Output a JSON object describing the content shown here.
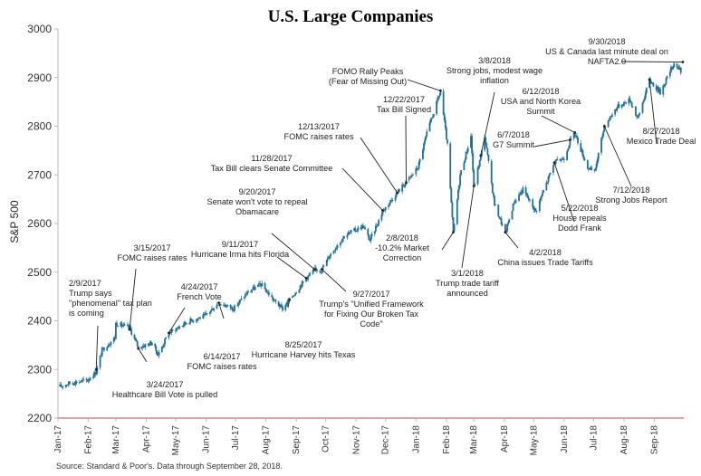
{
  "chart_data": {
    "type": "candlestick",
    "title": "U.S. Large Companies",
    "ylabel": "S&P 500",
    "ylim": [
      2200,
      3000
    ],
    "yticks": [
      "3000",
      "2900",
      "2800",
      "2700",
      "2600",
      "2500",
      "2400",
      "2300",
      "2200"
    ],
    "grid": false,
    "x_ticks": [
      "Jan-17",
      "Feb-17",
      "Mar-17",
      "Apr-17",
      "May-17",
      "Jun-17",
      "Jul-17",
      "Aug-17",
      "Sep-17",
      "Oct-17",
      "Nov-17",
      "Dec-17",
      "Jan-18",
      "Feb-18",
      "Mar-18",
      "Apr-18",
      "May-18",
      "Jun-18",
      "Jul-18",
      "Aug-18",
      "Sep-18"
    ],
    "series": [
      {
        "points": [
          [
            "2017-01-03",
            2265
          ],
          [
            "2017-01-13",
            2272
          ],
          [
            "2017-01-31",
            2278
          ],
          [
            "2017-02-09",
            2295
          ],
          [
            "2017-02-15",
            2340
          ],
          [
            "2017-02-28",
            2365
          ],
          [
            "2017-03-01",
            2395
          ],
          [
            "2017-03-15",
            2385
          ],
          [
            "2017-03-24",
            2345
          ],
          [
            "2017-04-07",
            2355
          ],
          [
            "2017-04-13",
            2330
          ],
          [
            "2017-04-24",
            2375
          ],
          [
            "2017-05-15",
            2400
          ],
          [
            "2017-05-31",
            2410
          ],
          [
            "2017-06-14",
            2437
          ],
          [
            "2017-06-29",
            2425
          ],
          [
            "2017-07-14",
            2460
          ],
          [
            "2017-07-27",
            2475
          ],
          [
            "2017-08-10",
            2440
          ],
          [
            "2017-08-18",
            2425
          ],
          [
            "2017-08-25",
            2443
          ],
          [
            "2017-09-11",
            2488
          ],
          [
            "2017-09-20",
            2505
          ],
          [
            "2017-09-27",
            2505
          ],
          [
            "2017-10-05",
            2535
          ],
          [
            "2017-10-20",
            2575
          ],
          [
            "2017-11-08",
            2595
          ],
          [
            "2017-11-15",
            2565
          ],
          [
            "2017-11-28",
            2625
          ],
          [
            "2017-12-13",
            2665
          ],
          [
            "2017-12-22",
            2685
          ],
          [
            "2018-01-03",
            2715
          ],
          [
            "2018-01-12",
            2785
          ],
          [
            "2018-01-26",
            2872
          ],
          [
            "2018-02-02",
            2760
          ],
          [
            "2018-02-08",
            2580
          ],
          [
            "2018-02-15",
            2700
          ],
          [
            "2018-02-26",
            2780
          ],
          [
            "2018-03-01",
            2675
          ],
          [
            "2018-03-08",
            2738
          ],
          [
            "2018-03-12",
            2780
          ],
          [
            "2018-03-22",
            2640
          ],
          [
            "2018-04-02",
            2580
          ],
          [
            "2018-04-11",
            2645
          ],
          [
            "2018-04-20",
            2670
          ],
          [
            "2018-05-03",
            2625
          ],
          [
            "2018-05-22",
            2725
          ],
          [
            "2018-06-01",
            2735
          ],
          [
            "2018-06-07",
            2770
          ],
          [
            "2018-06-12",
            2785
          ],
          [
            "2018-06-25",
            2715
          ],
          [
            "2018-07-02",
            2705
          ],
          [
            "2018-07-12",
            2800
          ],
          [
            "2018-07-25",
            2840
          ],
          [
            "2018-08-07",
            2855
          ],
          [
            "2018-08-15",
            2815
          ],
          [
            "2018-08-27",
            2895
          ],
          [
            "2018-09-07",
            2870
          ],
          [
            "2018-09-21",
            2930
          ],
          [
            "2018-09-28",
            2914
          ]
        ]
      }
    ],
    "annotations": [
      {
        "text": [
          "2/9/2017",
          "Trump says",
          "\"phenomenal\" tax plan",
          "is coming"
        ],
        "date": "2017-02-09",
        "value": 2300
      },
      {
        "text": [
          "3/15/2017",
          "FOMC raises rates"
        ],
        "date": "2017-03-15",
        "value": 2382
      },
      {
        "text": [
          "3/24/2017",
          "Healthcare Bill Vote is pulled"
        ],
        "date": "2017-03-24",
        "value": 2343
      },
      {
        "text": [
          "4/24/2017",
          "French Vote"
        ],
        "date": "2017-04-24",
        "value": 2375
      },
      {
        "text": [
          "6/14/2017",
          "FOMC raises rates"
        ],
        "date": "2017-06-14",
        "value": 2437
      },
      {
        "text": [
          "8/25/2017",
          "Hurricane Harvey hits Texas"
        ],
        "date": "2017-08-25",
        "value": 2443
      },
      {
        "text": [
          "9/11/2017",
          "Hurricane Irma hits Florida"
        ],
        "date": "2017-09-11",
        "value": 2488
      },
      {
        "text": [
          "9/20/2017",
          "Senate won't vote to repeal",
          "Obamacare"
        ],
        "date": "2017-09-20",
        "value": 2505
      },
      {
        "text": [
          "9/27/2017",
          "Trump's \"Unified Framework",
          "for Fixing Our Broken Tax",
          "Code\""
        ],
        "date": "2017-09-27",
        "value": 2506
      },
      {
        "text": [
          "11/28/2017",
          "Tax Bill clears Senate Committee"
        ],
        "date": "2017-11-28",
        "value": 2627
      },
      {
        "text": [
          "12/13/2017",
          "FOMC raises rates"
        ],
        "date": "2017-12-13",
        "value": 2663
      },
      {
        "text": [
          "12/22/2017",
          "Tax Bill Signed"
        ],
        "date": "2017-12-22",
        "value": 2684
      },
      {
        "text": [
          "FOMO Rally Peaks",
          "(Fear of Missing Out)"
        ],
        "date": "2018-01-26",
        "value": 2873
      },
      {
        "text": [
          "2/8/2018",
          "-10.2% Market",
          "Correction"
        ],
        "date": "2018-02-08",
        "value": 2582
      },
      {
        "text": [
          "3/1/2018",
          "Trump trade tariff",
          "announced"
        ],
        "date": "2018-03-01",
        "value": 2677
      },
      {
        "text": [
          "3/8/2018",
          "Strong jobs, modest wage",
          "inflation"
        ],
        "date": "2018-03-08",
        "value": 2740
      },
      {
        "text": [
          "4/2/2018",
          "China issues Trade Tariffs"
        ],
        "date": "2018-04-02",
        "value": 2582
      },
      {
        "text": [
          "5/22/2018",
          "House repeals",
          "Dodd Frank"
        ],
        "date": "2018-05-22",
        "value": 2725
      },
      {
        "text": [
          "6/7/2018",
          "G7 Summit"
        ],
        "date": "2018-06-07",
        "value": 2772
      },
      {
        "text": [
          "6/12/2018",
          "USA and North Korea",
          "Summit"
        ],
        "date": "2018-06-12",
        "value": 2787
      },
      {
        "text": [
          "7/12/2018",
          "Strong Jobs Report"
        ],
        "date": "2018-07-12",
        "value": 2800
      },
      {
        "text": [
          "8/27/2018",
          "Mexico Trade Deal"
        ],
        "date": "2018-08-27",
        "value": 2896
      },
      {
        "text": [
          "9/30/2018",
          "US & Canada last minute deal on",
          "NAFTA2.0"
        ],
        "date": "2018-09-30",
        "value": 2932
      }
    ],
    "source": "Source: Standard & Poor's. Data through September 28, 2018."
  },
  "colors": {
    "bars": "#1f6f98",
    "baseline": "#d46a6a",
    "axis": "#bbbbbb",
    "annotation_line": "#222222"
  }
}
